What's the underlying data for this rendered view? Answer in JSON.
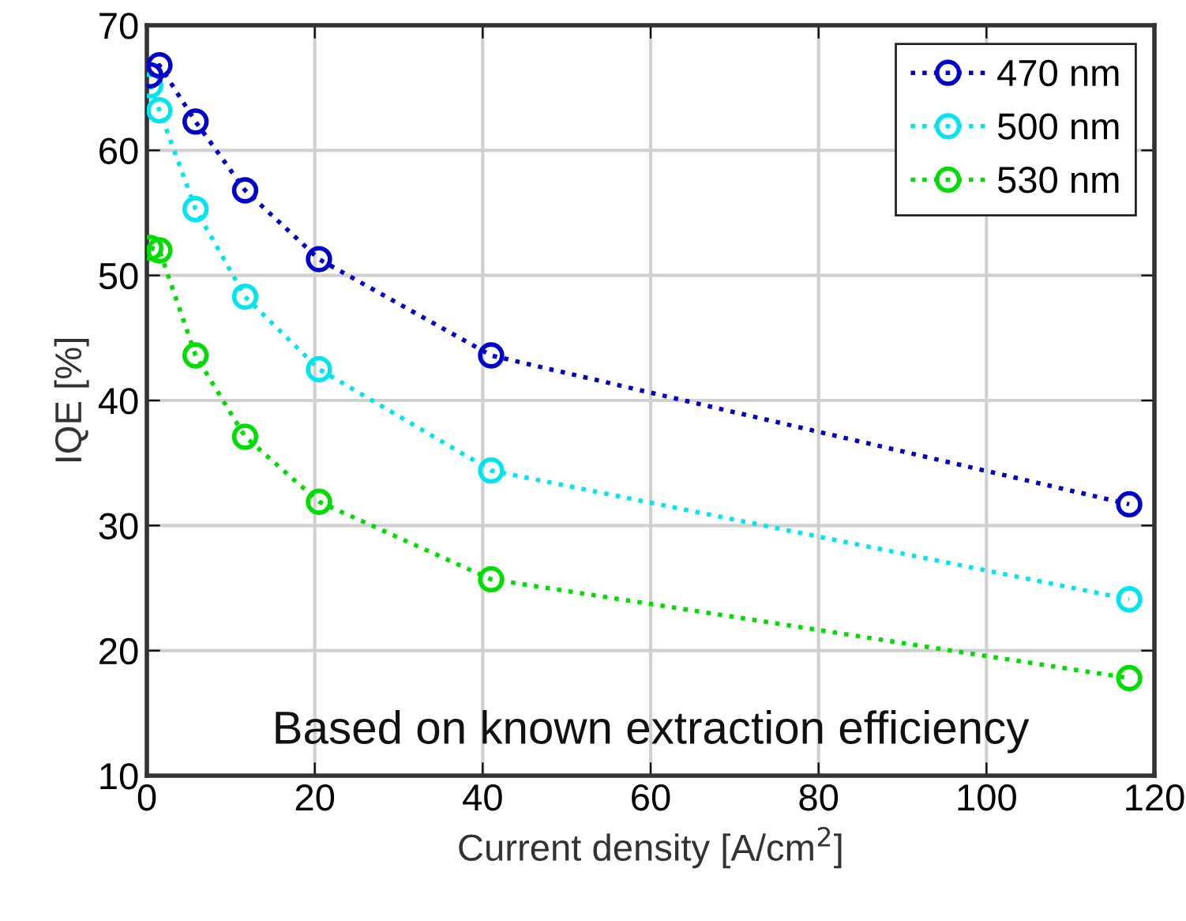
{
  "chart_data": {
    "type": "line",
    "xlabel": "Current density [A/cm$^{2}$]",
    "ylabel": "IQE [%]",
    "x": [
      0.4,
      1.5,
      5.8,
      11.7,
      20.5,
      41,
      117
    ],
    "series": [
      {
        "name": "470 nm",
        "color": "#0000cc",
        "values": [
          66.0,
          66.8,
          62.3,
          56.8,
          51.3,
          43.6,
          31.7
        ]
      },
      {
        "name": "500 nm",
        "color": "#00e5ee",
        "values": [
          65.2,
          63.2,
          55.3,
          48.3,
          42.5,
          34.4,
          24.1
        ]
      },
      {
        "name": "530 nm",
        "color": "#00dd00",
        "values": [
          52.2,
          52.0,
          43.6,
          37.1,
          31.9,
          25.7,
          17.8
        ]
      }
    ],
    "xlim": [
      0,
      120
    ],
    "xticks": [
      0,
      20,
      40,
      60,
      80,
      100,
      120
    ],
    "ylim": [
      10,
      70
    ],
    "yticks": [
      10,
      20,
      30,
      40,
      50,
      60,
      70
    ],
    "grid": true,
    "legend": "top right",
    "marker": "circle",
    "line_style": "dotted",
    "annotations": [
      "Based on known extraction efficiency"
    ]
  }
}
